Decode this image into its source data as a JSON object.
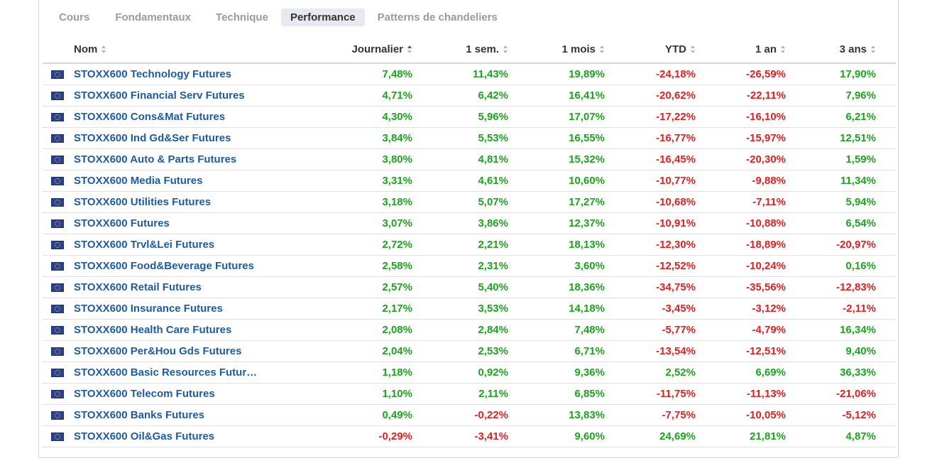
{
  "tabs": [
    {
      "label": "Cours",
      "active": false
    },
    {
      "label": "Fondamentaux",
      "active": false
    },
    {
      "label": "Technique",
      "active": false
    },
    {
      "label": "Performance",
      "active": true
    },
    {
      "label": "Patterns de chandeliers",
      "active": false
    }
  ],
  "columns": [
    "Nom",
    "Journalier",
    "1 sem.",
    "1 mois",
    "YTD",
    "1 an",
    "3 ans"
  ],
  "sorted_column": "Journalier",
  "colors": {
    "positive": "#1aa61a",
    "negative": "#ea1c1c",
    "link": "#1c5ba8"
  },
  "flag_icon": "eu-flag-icon",
  "rows": [
    {
      "name": "STOXX600 Technology Futures",
      "values": [
        "7,48%",
        "11,43%",
        "19,89%",
        "-24,18%",
        "-26,59%",
        "17,90%"
      ]
    },
    {
      "name": "STOXX600 Financial Serv Futures",
      "values": [
        "4,71%",
        "6,42%",
        "16,41%",
        "-20,62%",
        "-22,11%",
        "7,96%"
      ]
    },
    {
      "name": "STOXX600 Cons&Mat Futures",
      "values": [
        "4,30%",
        "5,96%",
        "17,07%",
        "-17,22%",
        "-16,10%",
        "6,21%"
      ]
    },
    {
      "name": "STOXX600 Ind Gd&Ser Futures",
      "values": [
        "3,84%",
        "5,53%",
        "16,55%",
        "-16,77%",
        "-15,97%",
        "12,51%"
      ]
    },
    {
      "name": "STOXX600 Auto & Parts Futures",
      "values": [
        "3,80%",
        "4,81%",
        "15,32%",
        "-16,45%",
        "-20,30%",
        "1,59%"
      ]
    },
    {
      "name": "STOXX600 Media Futures",
      "values": [
        "3,31%",
        "4,61%",
        "10,60%",
        "-10,77%",
        "-9,88%",
        "11,34%"
      ]
    },
    {
      "name": "STOXX600 Utilities Futures",
      "values": [
        "3,18%",
        "5,07%",
        "17,27%",
        "-10,68%",
        "-7,11%",
        "5,94%"
      ]
    },
    {
      "name": "STOXX600 Futures",
      "values": [
        "3,07%",
        "3,86%",
        "12,37%",
        "-10,91%",
        "-10,88%",
        "6,54%"
      ]
    },
    {
      "name": "STOXX600 Trvl&Lei Futures",
      "values": [
        "2,72%",
        "2,21%",
        "18,13%",
        "-12,30%",
        "-18,89%",
        "-20,97%"
      ]
    },
    {
      "name": "STOXX600 Food&Beverage Futures",
      "values": [
        "2,58%",
        "2,31%",
        "3,60%",
        "-12,52%",
        "-10,24%",
        "0,16%"
      ]
    },
    {
      "name": "STOXX600 Retail Futures",
      "values": [
        "2,57%",
        "5,40%",
        "18,36%",
        "-34,75%",
        "-35,56%",
        "-12,83%"
      ]
    },
    {
      "name": "STOXX600 Insurance Futures",
      "values": [
        "2,17%",
        "3,53%",
        "14,18%",
        "-3,45%",
        "-3,12%",
        "-2,11%"
      ]
    },
    {
      "name": "STOXX600 Health Care Futures",
      "values": [
        "2,08%",
        "2,84%",
        "7,48%",
        "-5,77%",
        "-4,79%",
        "16,34%"
      ]
    },
    {
      "name": "STOXX600 Per&Hou Gds Futures",
      "values": [
        "2,04%",
        "2,53%",
        "6,71%",
        "-13,54%",
        "-12,51%",
        "9,40%"
      ]
    },
    {
      "name": "STOXX600 Basic Resources Futur…",
      "values": [
        "1,18%",
        "0,92%",
        "9,36%",
        "2,52%",
        "6,69%",
        "36,33%"
      ]
    },
    {
      "name": "STOXX600 Telecom Futures",
      "values": [
        "1,10%",
        "2,11%",
        "6,85%",
        "-11,75%",
        "-11,13%",
        "-21,06%"
      ]
    },
    {
      "name": "STOXX600 Banks Futures",
      "values": [
        "0,49%",
        "-0,22%",
        "13,83%",
        "-7,75%",
        "-10,05%",
        "-5,12%"
      ]
    },
    {
      "name": "STOXX600 Oil&Gas Futures",
      "values": [
        "-0,29%",
        "-3,41%",
        "9,60%",
        "24,69%",
        "21,81%",
        "4,87%"
      ]
    }
  ]
}
